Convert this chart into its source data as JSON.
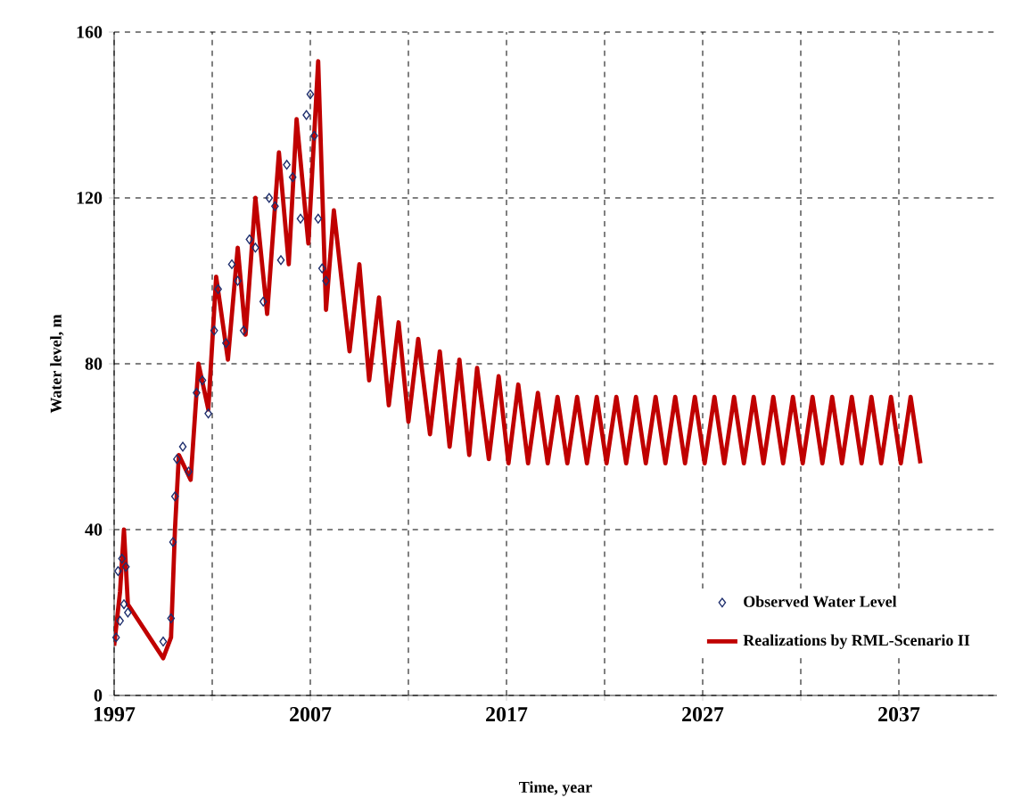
{
  "chart_data": {
    "type": "line",
    "xlabel": "Time, year",
    "ylabel": "Water level, m",
    "xlim": [
      1997,
      2042
    ],
    "ylim": [
      0,
      160
    ],
    "xticks": [
      1997,
      {
        "value": 2002,
        "label": null
      },
      2007,
      {
        "value": 2012,
        "label": null
      },
      2017,
      {
        "value": 2022,
        "label": null
      },
      2027,
      {
        "value": 2032,
        "label": null
      },
      2037
    ],
    "yticks": [
      0,
      40,
      80,
      120,
      160
    ],
    "grid": true,
    "legend": "bottom right",
    "series": [
      {
        "name": "Observed Water Level",
        "type": "scatter",
        "marker": "diamond",
        "color": "#1f2f6e",
        "x": [
          1997.1,
          1997.2,
          1997.3,
          1997.4,
          1997.5,
          1997.6,
          1997.7,
          1999.5,
          1999.9,
          2000.0,
          2000.1,
          2000.2,
          2000.5,
          2000.8,
          2001.2,
          2001.5,
          2001.8,
          2002.1,
          2002.3,
          2002.7,
          2003.0,
          2003.3,
          2003.6,
          2003.9,
          2004.2,
          2004.6,
          2004.9,
          2005.2,
          2005.5,
          2005.8,
          2006.1,
          2006.5,
          2006.8,
          2007.0,
          2007.2,
          2007.4,
          2007.6,
          2007.8
        ],
        "values": [
          14,
          30,
          18,
          33,
          22,
          31,
          20,
          13,
          18.6,
          37,
          48,
          57,
          60,
          54,
          73,
          76,
          68,
          88,
          98,
          85,
          104,
          100,
          88,
          110,
          108,
          95,
          120,
          118,
          105,
          128,
          125,
          115,
          140,
          145,
          135,
          115,
          103,
          100
        ]
      },
      {
        "name": "Realizations by RML-Scenario II",
        "type": "line",
        "marker": "none",
        "line_style": "solid",
        "color": "#c00000",
        "x": [
          1997.0,
          1997.3,
          1997.5,
          1997.7,
          1999.5,
          1999.9,
          2000.1,
          2000.3,
          2000.9,
          2001.3,
          2001.8,
          2002.2,
          2002.8,
          2003.3,
          2003.7,
          2004.2,
          2004.8,
          2005.4,
          2005.9,
          2006.3,
          2006.9,
          2007.4,
          2007.8,
          2008.2,
          2009.0,
          2009.5,
          2010.0,
          2010.5,
          2011.0,
          2011.5,
          2012.0,
          2012.5,
          2013.1,
          2013.6,
          2014.1,
          2014.6,
          2015.1,
          2015.5,
          2016.1,
          2016.6,
          2017.1,
          2017.6,
          2018.1,
          2018.6,
          2019.1,
          2019.6,
          2020.1,
          2020.6,
          2021.1,
          2021.6,
          2022.1,
          2022.6,
          2023.1,
          2023.6,
          2024.1,
          2024.6,
          2025.1,
          2025.6,
          2026.1,
          2026.6,
          2027.1,
          2027.6,
          2028.1,
          2028.6,
          2029.1,
          2029.6,
          2030.1,
          2030.6,
          2031.1,
          2031.6,
          2032.1,
          2032.6,
          2033.1,
          2033.6,
          2034.1,
          2034.6,
          2035.1,
          2035.6,
          2036.1,
          2036.6,
          2037.1,
          2037.6,
          2038.1
        ],
        "values": [
          12,
          25,
          40,
          22,
          9,
          14,
          40,
          58,
          52,
          80,
          69,
          101,
          81,
          108,
          87,
          120,
          92,
          131,
          104,
          139,
          109,
          153,
          93,
          117,
          83,
          104,
          76,
          96,
          70,
          90,
          66,
          86,
          63,
          83,
          60,
          81,
          58,
          79,
          57,
          77,
          56,
          75,
          56,
          73,
          56,
          72,
          56,
          72,
          56,
          72,
          56,
          72,
          56,
          72,
          56,
          72,
          56,
          72,
          56,
          72,
          56,
          72,
          56,
          72,
          56,
          72,
          56,
          72,
          56,
          72,
          56,
          72,
          56,
          72,
          56,
          72,
          56,
          72,
          56,
          72,
          56,
          72,
          56
        ]
      }
    ]
  }
}
